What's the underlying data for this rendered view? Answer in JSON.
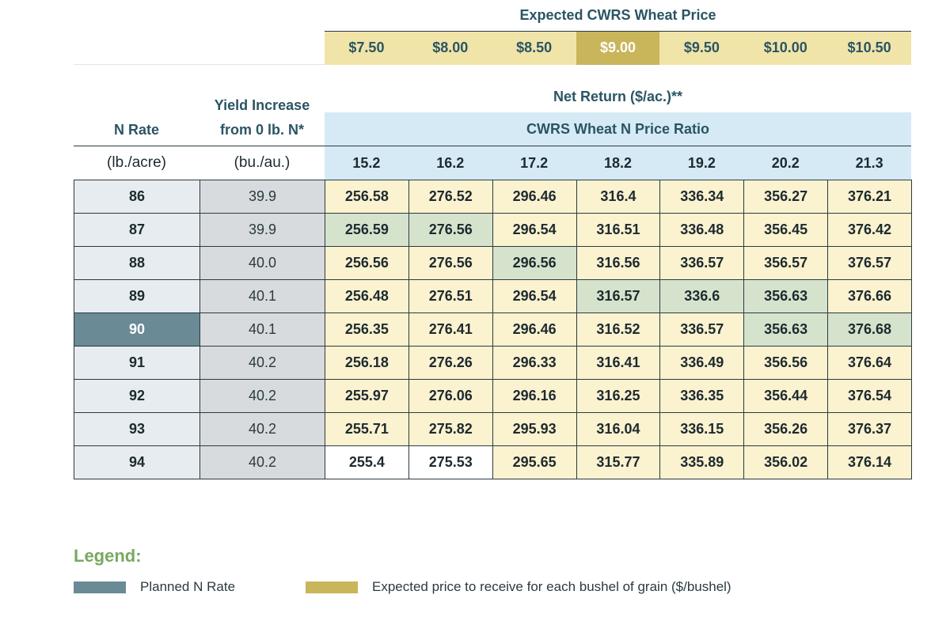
{
  "price_header": {
    "title": "Expected CWRS Wheat Price",
    "prices": [
      "$7.50",
      "$8.00",
      "$8.50",
      "$9.00",
      "$9.50",
      "$10.00",
      "$10.50"
    ],
    "selected_index": 3
  },
  "headers": {
    "net_return": "Net Return ($/ac.)**",
    "ratio": "CWRS Wheat N Price Ratio",
    "n_rate": "N Rate",
    "yield_line1": "Yield Increase",
    "yield_line2": "from 0 lb. N*",
    "n_rate_unit": "(lb./acre)",
    "yield_unit": "(bu./au.)",
    "ratios": [
      "15.2",
      "16.2",
      "17.2",
      "18.2",
      "19.2",
      "20.2",
      "21.3"
    ]
  },
  "rows": [
    {
      "n_rate": "86",
      "yield": "39.9",
      "values": [
        "256.58",
        "276.52",
        "296.46",
        "316.4",
        "336.34",
        "356.27",
        "376.21"
      ]
    },
    {
      "n_rate": "87",
      "yield": "39.9",
      "values": [
        "256.59",
        "276.56",
        "296.54",
        "316.51",
        "336.48",
        "356.45",
        "376.42"
      ]
    },
    {
      "n_rate": "88",
      "yield": "40.0",
      "values": [
        "256.56",
        "276.56",
        "296.56",
        "316.56",
        "336.57",
        "356.57",
        "376.57"
      ]
    },
    {
      "n_rate": "89",
      "yield": "40.1",
      "values": [
        "256.48",
        "276.51",
        "296.54",
        "316.57",
        "336.6",
        "356.63",
        "376.66"
      ]
    },
    {
      "n_rate": "90",
      "yield": "40.1",
      "values": [
        "256.35",
        "276.41",
        "296.46",
        "316.52",
        "336.57",
        "356.63",
        "376.68"
      ]
    },
    {
      "n_rate": "91",
      "yield": "40.2",
      "values": [
        "256.18",
        "276.26",
        "296.33",
        "316.41",
        "336.49",
        "356.56",
        "376.64"
      ]
    },
    {
      "n_rate": "92",
      "yield": "40.2",
      "values": [
        "255.97",
        "276.06",
        "296.16",
        "316.25",
        "336.35",
        "356.44",
        "376.54"
      ]
    },
    {
      "n_rate": "93",
      "yield": "40.2",
      "values": [
        "255.71",
        "275.82",
        "295.93",
        "316.04",
        "336.15",
        "356.26",
        "376.37"
      ]
    },
    {
      "n_rate": "94",
      "yield": "40.2",
      "values": [
        "255.4",
        "275.53",
        "295.65",
        "315.77",
        "335.89",
        "356.02",
        "376.14"
      ]
    }
  ],
  "planned_row_index": 4,
  "green_cells": [
    [
      1,
      0
    ],
    [
      1,
      1
    ],
    [
      2,
      2
    ],
    [
      3,
      3
    ],
    [
      3,
      4
    ],
    [
      3,
      5
    ],
    [
      4,
      5
    ],
    [
      4,
      6
    ]
  ],
  "white_cells": [
    [
      8,
      0
    ],
    [
      8,
      1
    ]
  ],
  "colors": {
    "planned": "#6a8a95",
    "price": "#c9b55a",
    "optimal": "#d6e3cc",
    "cell": "#fbf2cf",
    "ratio_band": "#d6eaf5",
    "legend_title": "#79a861"
  },
  "legend": {
    "title": "Legend:",
    "planned_label": "Planned N Rate",
    "price_label": "Expected price to receive for each bushel of grain ($/bushel)"
  }
}
